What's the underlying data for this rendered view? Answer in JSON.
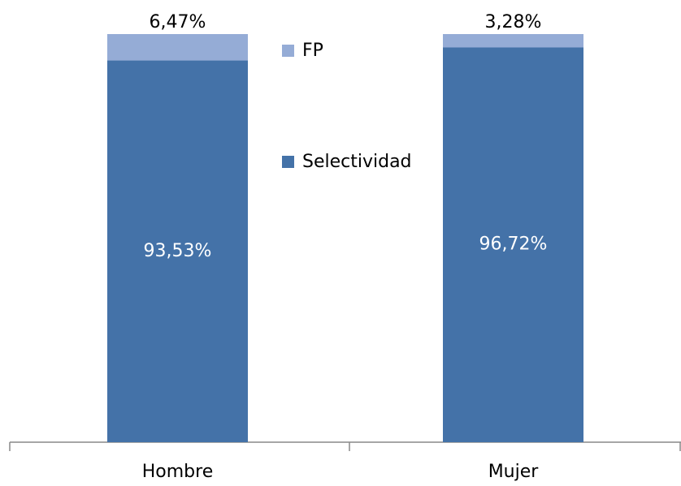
{
  "chart_data": {
    "type": "stacked_bar",
    "categories": [
      "Hombre",
      "Mujer"
    ],
    "series": [
      {
        "name": "Selectividad",
        "color": "#4472a8",
        "values": [
          93.53,
          96.72
        ],
        "value_labels": [
          "93,53%",
          "96,72%"
        ]
      },
      {
        "name": "FP",
        "color": "#95acd6",
        "values": [
          6.47,
          3.28
        ],
        "value_labels": [
          "6,47%",
          "3,28%"
        ]
      }
    ]
  }
}
